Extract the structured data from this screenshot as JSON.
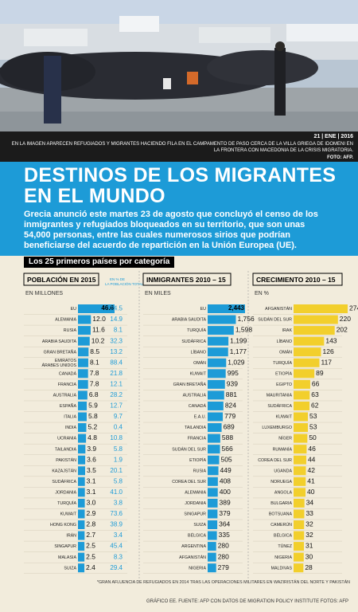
{
  "caption": {
    "date": "21 | ENE | 2016",
    "text": "EN LA IMAGEN APARECEN REFUGIADOS Y MIGRANTES HACIENDO FILA EN EL CAMPAMENTO DE PASO CERCA DE LA VILLA GRIEGA DE IDOMENI EN LA FRONTERA CON MACEDONIA DE LA CRISIS MIGRATORIA.",
    "credit": "FOTO: AFP."
  },
  "header": {
    "title_line1": "DESTINOS DE LOS MIGRANTES",
    "title_line2": "EN EL MUNDO",
    "intro": "Grecia anunció este martes 23 de agosto que concluyó el censo de los inmigrantes y refugiados bloqueados en su territorio, que son unas 54,000 personas, entre las cuales numerosos sirios que podrían beneficiarse del acuerdo de repartición en la Unión Europea (UE)."
  },
  "category_title": "Los 25 primeros países por categoría",
  "footer": "GRÁFICO EE. FUENTE: AFP CON DATOS DE MIGRATION POLICY INSTITUTE FOTOS: AFP",
  "colors": {
    "banner": "#1d9bd7",
    "panel": "#f2ecdc",
    "blue_bar": "#1d9bd7",
    "gold_bar": "#f2cf2c",
    "pct_text": "#1d9bd7"
  },
  "chart_data": [
    {
      "type": "bar",
      "title": "POBLACIÓN EN 2015",
      "unit": "EN MILLONES",
      "extra_label": "EN % DE LA POBLACIÓN TOTAL",
      "categories": [
        "EU",
        "ALEMANIA",
        "RUSIA",
        "ARABIA SAUDITA",
        "GRAN BRETAÑA",
        "EMIRATOS ÁRABES UNIDOS",
        "CANADÁ",
        "FRANCIA",
        "AUSTRALIA",
        "ESPAÑA",
        "ITALIA",
        "INDIA",
        "UCRANIA",
        "TAILANDIA",
        "PAKISTÁN",
        "KAZAJSTÁN",
        "SUDÁFRICA",
        "JORDANIA",
        "TURQUÍA",
        "KUWAIT",
        "HONG KONG",
        "IRÁN",
        "SINGAPUR",
        "MALASIA",
        "SUIZA"
      ],
      "values": [
        46.6,
        12.0,
        11.6,
        10.2,
        8.5,
        8.1,
        7.8,
        7.8,
        6.8,
        5.9,
        5.8,
        5.2,
        4.8,
        3.9,
        3.6,
        3.5,
        3.1,
        3.1,
        3.0,
        2.9,
        2.8,
        2.7,
        2.5,
        2.5,
        2.4
      ],
      "labels": [
        "46.6",
        "12.0",
        "11.6",
        "10.2",
        "8.5",
        "8.1",
        "7.8",
        "7.8",
        "6.8",
        "5.9",
        "5.8",
        "5.2",
        "4.8",
        "3.9",
        "3.6",
        "3.5",
        "3.1",
        "3.1",
        "3.0",
        "2.9",
        "2.8",
        "2.7",
        "2.5",
        "2.5",
        "2.4"
      ],
      "percent": [
        "14.5",
        "14.9",
        "8.1",
        "32.3",
        "13.2",
        "88.4",
        "21.8",
        "12.1",
        "28.2",
        "12.7",
        "9.7",
        "0.4",
        "10.8",
        "5.8",
        "1.9",
        "20.1",
        "5.8",
        "41.0",
        "3.8",
        "73.6",
        "38.9",
        "3.4",
        "45.4",
        "8.3",
        "29.4"
      ]
    },
    {
      "type": "bar",
      "title": "INMIGRANTES  2010 – 15",
      "unit": "EN MILES",
      "categories": [
        "EU",
        "ARABIA SAUDITA",
        "TURQUÍA",
        "SUDÁFRICA",
        "LÍBANO",
        "OMÁN",
        "KUWAIT",
        "GRAN BRETAÑA",
        "AUSTRALIA",
        "CANADÁ",
        "E.A.U.",
        "TAILANDIA",
        "FRANCIA",
        "SUDÁN DEL SUR",
        "ETIOPÍA",
        "RUSIA",
        "COREA DEL SUR",
        "ALEMANIA",
        "JORDANIA",
        "SINGAPUR",
        "SUIZA",
        "BÉLGICA",
        "ARGENTINA",
        "AFGANISTÁN",
        "NIGERIA"
      ],
      "values": [
        2443,
        1756,
        1598,
        1199,
        1177,
        1029,
        995,
        939,
        881,
        824,
        779,
        689,
        588,
        566,
        505,
        449,
        408,
        400,
        389,
        379,
        364,
        335,
        280,
        280,
        279
      ],
      "labels": [
        "2,443",
        "1,756",
        "1,598",
        "1,199",
        "1,177",
        "1,029",
        "995",
        "939",
        "881",
        "824",
        "779",
        "689",
        "588",
        "566",
        "505",
        "449",
        "408",
        "400",
        "389",
        "379",
        "364",
        "335",
        "280",
        "280",
        "279"
      ]
    },
    {
      "type": "bar",
      "title": "CRECIMIENTO  2010 – 15",
      "unit": "EN %",
      "categories": [
        "AFGANISTÁN",
        "SUDÁN DEL SUR",
        "IRAK",
        "LÍBANO",
        "OMÁN",
        "TURQUÍA",
        "ETIOPÍA",
        "EGIPTO",
        "MAURITANIA",
        "SUDÁFRICA",
        "KUWAIT",
        "LUXEMBURGO",
        "NÍGER",
        "RUMANÍA",
        "COREA DEL SUR",
        "UGANDA",
        "NORUEGA",
        "ANGOLA",
        "BULGARIA",
        "BOTSUANA",
        "CAMERÚN",
        "BÉLGICA",
        "TÚNEZ",
        "NIGERIA",
        "MALDIVAS"
      ],
      "values": [
        274,
        220,
        202,
        143,
        126,
        117,
        89,
        66,
        63,
        62,
        53,
        53,
        50,
        46,
        44,
        42,
        41,
        40,
        34,
        33,
        32,
        32,
        31,
        30,
        28
      ],
      "labels": [
        "274*",
        "220",
        "202",
        "143",
        "126",
        "117",
        "89",
        "66",
        "63",
        "62",
        "53",
        "53",
        "50",
        "46",
        "44",
        "42",
        "41",
        "40",
        "34",
        "33",
        "32",
        "32",
        "31",
        "30",
        "28"
      ],
      "note": "*GRAN AFLUENCIA DE REFUGIADOS EN 2014 TRAS LAS OPERACIONES MILITARES EN WAZIRISTÁN DEL NORTE Y PAKISTÁN"
    }
  ]
}
